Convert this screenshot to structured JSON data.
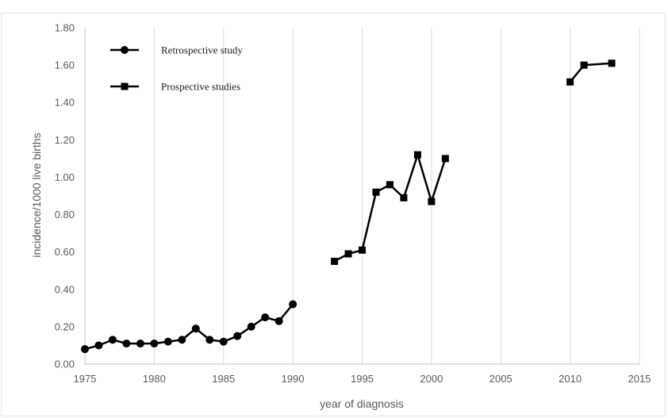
{
  "chart_data": {
    "type": "line",
    "xlabel": "year of diagnosis",
    "ylabel": "incidence/1000 live births",
    "xlim": [
      1975,
      2015
    ],
    "ylim": [
      0,
      1.8
    ],
    "x_ticks": [
      "1975",
      "1980",
      "1985",
      "1990",
      "1995",
      "2000",
      "2005",
      "2010",
      "2015"
    ],
    "y_ticks": [
      "0.00",
      "0.20",
      "0.40",
      "0.60",
      "0.80",
      "1.00",
      "1.20",
      "1.40",
      "1.60",
      "1.80"
    ],
    "grid": "vertical",
    "legend_position": "top-left",
    "series": [
      {
        "name": "Retrospective study",
        "marker": "circle",
        "color": "#000000",
        "segments": [
          [
            [
              1975,
              0.08
            ],
            [
              1976,
              0.1
            ],
            [
              1977,
              0.13
            ],
            [
              1978,
              0.11
            ],
            [
              1979,
              0.11
            ],
            [
              1980,
              0.11
            ],
            [
              1981,
              0.12
            ],
            [
              1982,
              0.13
            ],
            [
              1983,
              0.19
            ],
            [
              1984,
              0.13
            ],
            [
              1985,
              0.12
            ],
            [
              1986,
              0.15
            ],
            [
              1987,
              0.2
            ],
            [
              1988,
              0.25
            ],
            [
              1989,
              0.23
            ],
            [
              1990,
              0.32
            ]
          ]
        ]
      },
      {
        "name": "Prospective studies",
        "marker": "square",
        "color": "#000000",
        "segments": [
          [
            [
              1993,
              0.55
            ],
            [
              1994,
              0.59
            ],
            [
              1995,
              0.61
            ],
            [
              1996,
              0.92
            ],
            [
              1997,
              0.96
            ],
            [
              1998,
              0.89
            ],
            [
              1999,
              1.12
            ],
            [
              2000,
              0.87
            ],
            [
              2001,
              1.1
            ]
          ],
          [
            [
              2010,
              1.51
            ],
            [
              2011,
              1.6
            ],
            [
              2013,
              1.61
            ]
          ]
        ]
      }
    ]
  }
}
